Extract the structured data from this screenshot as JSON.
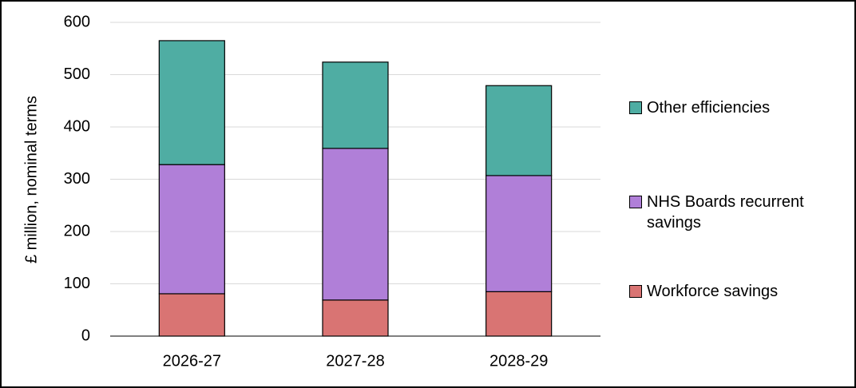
{
  "chart_data": {
    "type": "stacked_bar",
    "y_label": "£ million, nominal terms",
    "categories": [
      "2026-27",
      "2027-28",
      "2028-29"
    ],
    "series": [
      {
        "name": "Workforce savings",
        "color": "#d97473",
        "values": [
          81,
          69,
          85
        ]
      },
      {
        "name": "NHS Boards recurrent savings",
        "color": "#b07fd8",
        "values": [
          247,
          290,
          222
        ]
      },
      {
        "name": "Other efficiencies",
        "color": "#4fada3",
        "values": [
          237,
          165,
          172
        ]
      }
    ],
    "ylim": [
      0,
      600
    ],
    "yticks": [
      0,
      100,
      200,
      300,
      400,
      500,
      600
    ],
    "grid": true
  }
}
